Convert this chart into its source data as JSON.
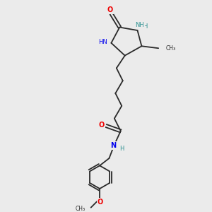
{
  "bg_color": "#ebebeb",
  "bond_color": "#2a2a2a",
  "N_color": "#0000ee",
  "O_color": "#ee0000",
  "teal_color": "#2a9090",
  "figsize": [
    3.0,
    3.0
  ],
  "dpi": 100,
  "xlim": [
    0,
    10
  ],
  "ylim": [
    0,
    10
  ]
}
